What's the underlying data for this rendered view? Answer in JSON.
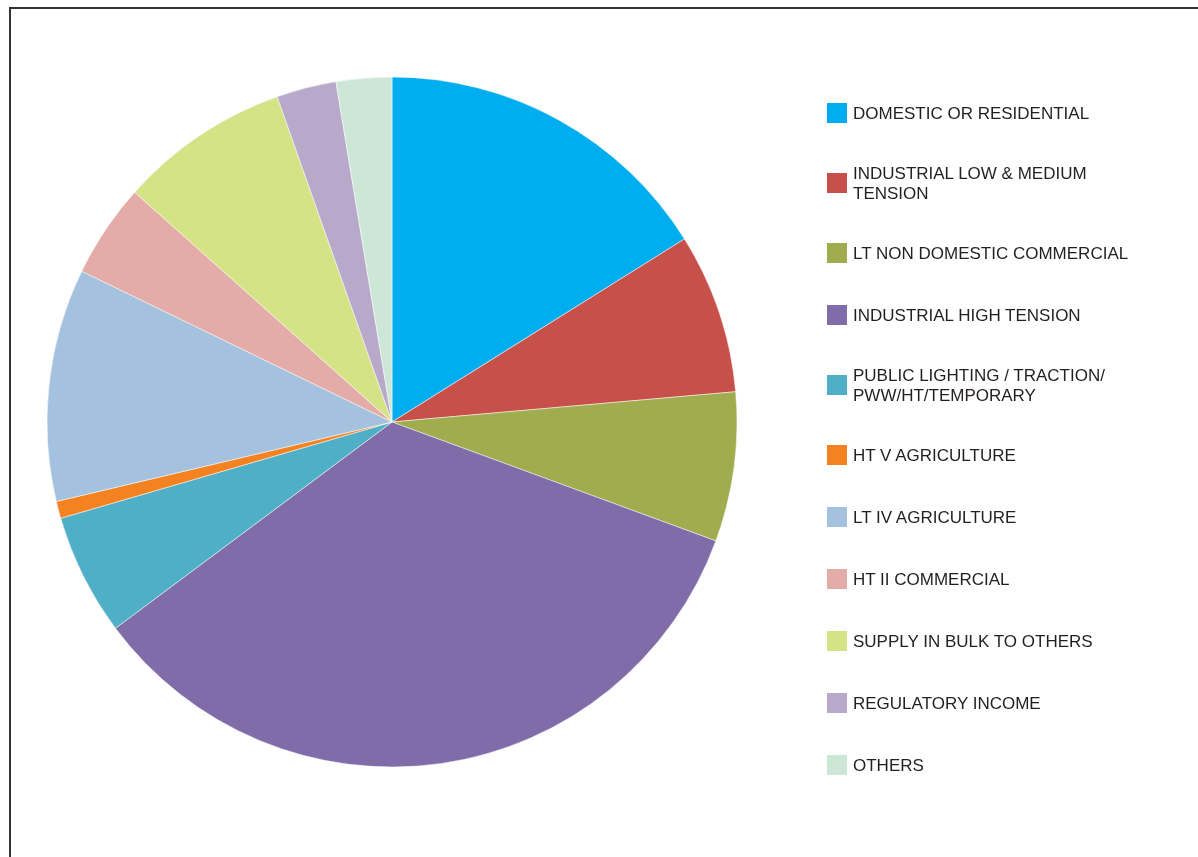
{
  "chart_data": {
    "type": "pie",
    "legend": "right",
    "categories": [
      "DOMESTIC OR RESIDENTIAL",
      "INDUSTRIAL LOW & MEDIUM TENSION",
      "LT NON DOMESTIC COMMERCIAL",
      "INDUSTRIAL HIGH TENSION",
      "PUBLIC LIGHTING / TRACTION/ PWW/HT/TEMPORARY",
      "HT V AGRICULTURE",
      "LT IV AGRICULTURE",
      "HT II COMMERCIAL",
      "SUPPLY IN BULK TO OTHERS",
      "REGULATORY INCOME",
      "OTHERS"
    ],
    "values": [
      16.1,
      7.5,
      7.0,
      34.2,
      5.7,
      0.8,
      10.9,
      4.4,
      8.0,
      2.8,
      2.6
    ],
    "colors": [
      "#00aeef",
      "#c8504b",
      "#a0ad4f",
      "#7f6ca8",
      "#4fafc6",
      "#f58220",
      "#a4c1de",
      "#e4aca8",
      "#d5e387",
      "#b8a9cb",
      "#cde7d6"
    ]
  }
}
